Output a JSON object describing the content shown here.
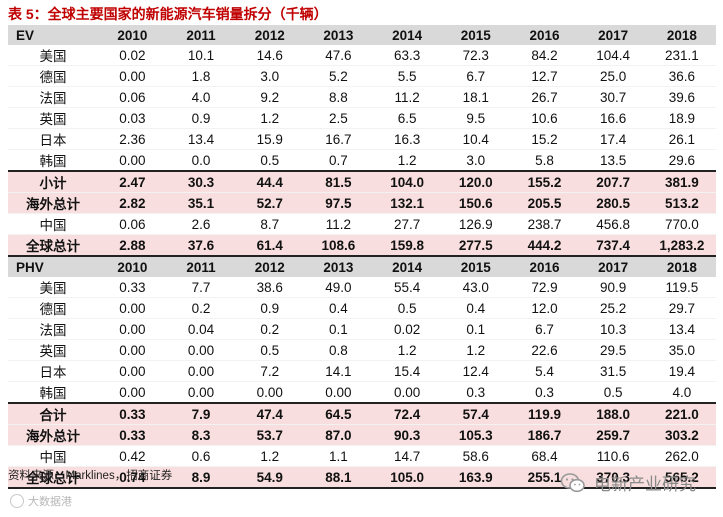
{
  "title": "表 5：全球主要国家的新能源汽车销量拆分（千辆）",
  "years": [
    "2010",
    "2011",
    "2012",
    "2013",
    "2014",
    "2015",
    "2016",
    "2017",
    "2018"
  ],
  "ev": {
    "header": "EV",
    "rows": [
      {
        "label": "美国",
        "values": [
          "0.02",
          "10.1",
          "14.6",
          "47.6",
          "63.3",
          "72.3",
          "84.2",
          "104.4",
          "231.1"
        ]
      },
      {
        "label": "德国",
        "values": [
          "0.00",
          "1.8",
          "3.0",
          "5.2",
          "5.5",
          "6.7",
          "12.7",
          "25.0",
          "36.6"
        ]
      },
      {
        "label": "法国",
        "values": [
          "0.06",
          "4.0",
          "9.2",
          "8.8",
          "11.2",
          "18.1",
          "26.7",
          "30.7",
          "39.6"
        ]
      },
      {
        "label": "英国",
        "values": [
          "0.03",
          "0.9",
          "1.2",
          "2.5",
          "6.5",
          "9.5",
          "10.6",
          "16.6",
          "18.9"
        ]
      },
      {
        "label": "日本",
        "values": [
          "2.36",
          "13.4",
          "15.9",
          "16.7",
          "16.3",
          "10.4",
          "15.2",
          "17.4",
          "26.1"
        ]
      },
      {
        "label": "韩国",
        "values": [
          "0.00",
          "0.0",
          "0.5",
          "0.7",
          "1.2",
          "3.0",
          "5.8",
          "13.5",
          "29.6"
        ]
      }
    ],
    "subtotal": {
      "label": "小计",
      "values": [
        "2.47",
        "30.3",
        "44.4",
        "81.5",
        "104.0",
        "120.0",
        "155.2",
        "207.7",
        "381.9"
      ]
    },
    "overseas": {
      "label": "海外总计",
      "values": [
        "2.82",
        "35.1",
        "52.7",
        "97.5",
        "132.1",
        "150.6",
        "205.5",
        "280.5",
        "513.2"
      ]
    },
    "china": {
      "label": "中国",
      "values": [
        "0.06",
        "2.6",
        "8.7",
        "11.2",
        "27.7",
        "126.9",
        "238.7",
        "456.8",
        "770.0"
      ]
    },
    "global": {
      "label": "全球总计",
      "values": [
        "2.88",
        "37.6",
        "61.4",
        "108.6",
        "159.8",
        "277.5",
        "444.2",
        "737.4",
        "1,283.2"
      ]
    }
  },
  "phv": {
    "header": "PHV",
    "rows": [
      {
        "label": "美国",
        "values": [
          "0.33",
          "7.7",
          "38.6",
          "49.0",
          "55.4",
          "43.0",
          "72.9",
          "90.9",
          "119.5"
        ]
      },
      {
        "label": "德国",
        "values": [
          "0.00",
          "0.2",
          "0.9",
          "0.4",
          "0.5",
          "0.4",
          "12.0",
          "25.2",
          "29.7"
        ]
      },
      {
        "label": "法国",
        "values": [
          "0.00",
          "0.04",
          "0.2",
          "0.1",
          "0.02",
          "0.1",
          "6.7",
          "10.3",
          "13.4"
        ]
      },
      {
        "label": "英国",
        "values": [
          "0.00",
          "0.00",
          "0.5",
          "0.8",
          "1.2",
          "1.2",
          "22.6",
          "29.5",
          "35.0"
        ]
      },
      {
        "label": "日本",
        "values": [
          "0.00",
          "0.00",
          "7.2",
          "14.1",
          "15.4",
          "12.4",
          "5.4",
          "31.5",
          "19.4"
        ]
      },
      {
        "label": "韩国",
        "values": [
          "0.00",
          "0.00",
          "0.00",
          "0.00",
          "0.00",
          "0.3",
          "0.3",
          "0.5",
          "4.0"
        ]
      }
    ],
    "subtotal": {
      "label": "合计",
      "values": [
        "0.33",
        "7.9",
        "47.4",
        "64.5",
        "72.4",
        "57.4",
        "119.9",
        "188.0",
        "221.0"
      ]
    },
    "overseas": {
      "label": "海外总计",
      "values": [
        "0.33",
        "8.3",
        "53.7",
        "87.0",
        "90.3",
        "105.3",
        "186.7",
        "259.7",
        "303.2"
      ]
    },
    "china": {
      "label": "中国",
      "values": [
        "0.42",
        "0.6",
        "1.2",
        "1.1",
        "14.7",
        "58.6",
        "68.4",
        "110.6",
        "262.0"
      ]
    },
    "global": {
      "label": "全球总计",
      "values": [
        "0.74",
        "8.9",
        "54.9",
        "88.1",
        "105.0",
        "163.9",
        "255.1",
        "370.3",
        "565.2"
      ]
    }
  },
  "source": "资料来源：Marklines，招商证券",
  "watermark_left": "大数据港",
  "watermark_right": "电新产业研究",
  "icons": {
    "wechat": "wechat-icon"
  }
}
